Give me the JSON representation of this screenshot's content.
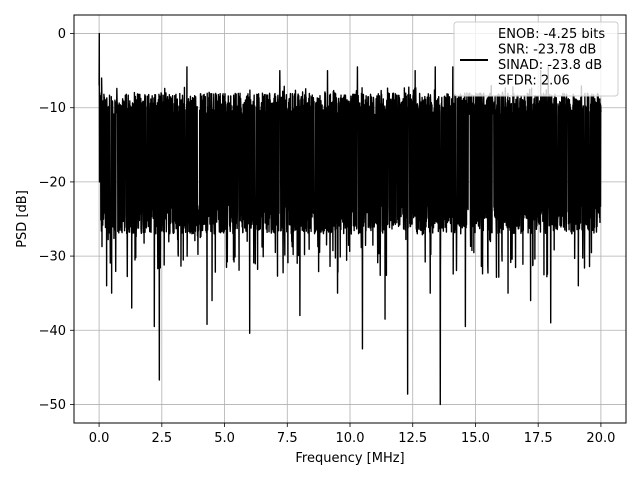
{
  "chart_data": {
    "type": "line",
    "xlabel": "Frequency [MHz]",
    "ylabel": "PSD [dB]",
    "xlim": [
      -1.0,
      21.0
    ],
    "ylim": [
      -52.5,
      2.5
    ],
    "xticks": [
      0.0,
      2.5,
      5.0,
      7.5,
      10.0,
      12.5,
      15.0,
      17.5,
      20.0
    ],
    "xtick_labels": [
      "0.0",
      "2.5",
      "5.0",
      "7.5",
      "10.0",
      "12.5",
      "15.0",
      "17.5",
      "20.0"
    ],
    "yticks": [
      0,
      -10,
      -20,
      -30,
      -40,
      -50
    ],
    "ytick_labels": [
      "0",
      "−10",
      "−20",
      "−30",
      "−40",
      "−50"
    ],
    "grid": true,
    "legend_position": "top-right",
    "series": [
      {
        "name": "ENOB: -4.25 bits\nSNR: -23.78 dB\nSINAD: -23.8 dB\nSFDR: 2.06",
        "color": "#000000",
        "x_start": 0.0,
        "x_end": 20.0,
        "peak": {
          "x": 0.0,
          "y": 0.0
        },
        "typical_range": [
          -25,
          -10
        ],
        "notable_dips": [
          {
            "x": 0.3,
            "y": -34
          },
          {
            "x": 0.5,
            "y": -35
          },
          {
            "x": 1.3,
            "y": -37
          },
          {
            "x": 2.2,
            "y": -39.5
          },
          {
            "x": 2.4,
            "y": -46.7
          },
          {
            "x": 4.3,
            "y": -39.2
          },
          {
            "x": 4.5,
            "y": -36
          },
          {
            "x": 6.0,
            "y": -40.4
          },
          {
            "x": 8.0,
            "y": -38
          },
          {
            "x": 9.1,
            "y": -43.4
          },
          {
            "x": 9.5,
            "y": -35
          },
          {
            "x": 10.5,
            "y": -42.5
          },
          {
            "x": 11.4,
            "y": -38.5
          },
          {
            "x": 12.3,
            "y": -48.6
          },
          {
            "x": 13.2,
            "y": -35
          },
          {
            "x": 13.6,
            "y": -50.0
          },
          {
            "x": 14.6,
            "y": -39.5
          },
          {
            "x": 16.3,
            "y": -35
          },
          {
            "x": 17.2,
            "y": -36
          },
          {
            "x": 18.0,
            "y": -39
          },
          {
            "x": 19.1,
            "y": -34
          }
        ],
        "notable_peaks": [
          {
            "x": 0.1,
            "y": -6
          },
          {
            "x": 3.5,
            "y": -4.5
          },
          {
            "x": 7.2,
            "y": -5
          },
          {
            "x": 9.1,
            "y": -5
          },
          {
            "x": 10.3,
            "y": -4.5
          },
          {
            "x": 12.6,
            "y": -5
          },
          {
            "x": 13.4,
            "y": -4.5
          },
          {
            "x": 14.1,
            "y": -4.5
          },
          {
            "x": 17.6,
            "y": -5
          },
          {
            "x": 17.9,
            "y": -4.5
          }
        ]
      }
    ]
  }
}
